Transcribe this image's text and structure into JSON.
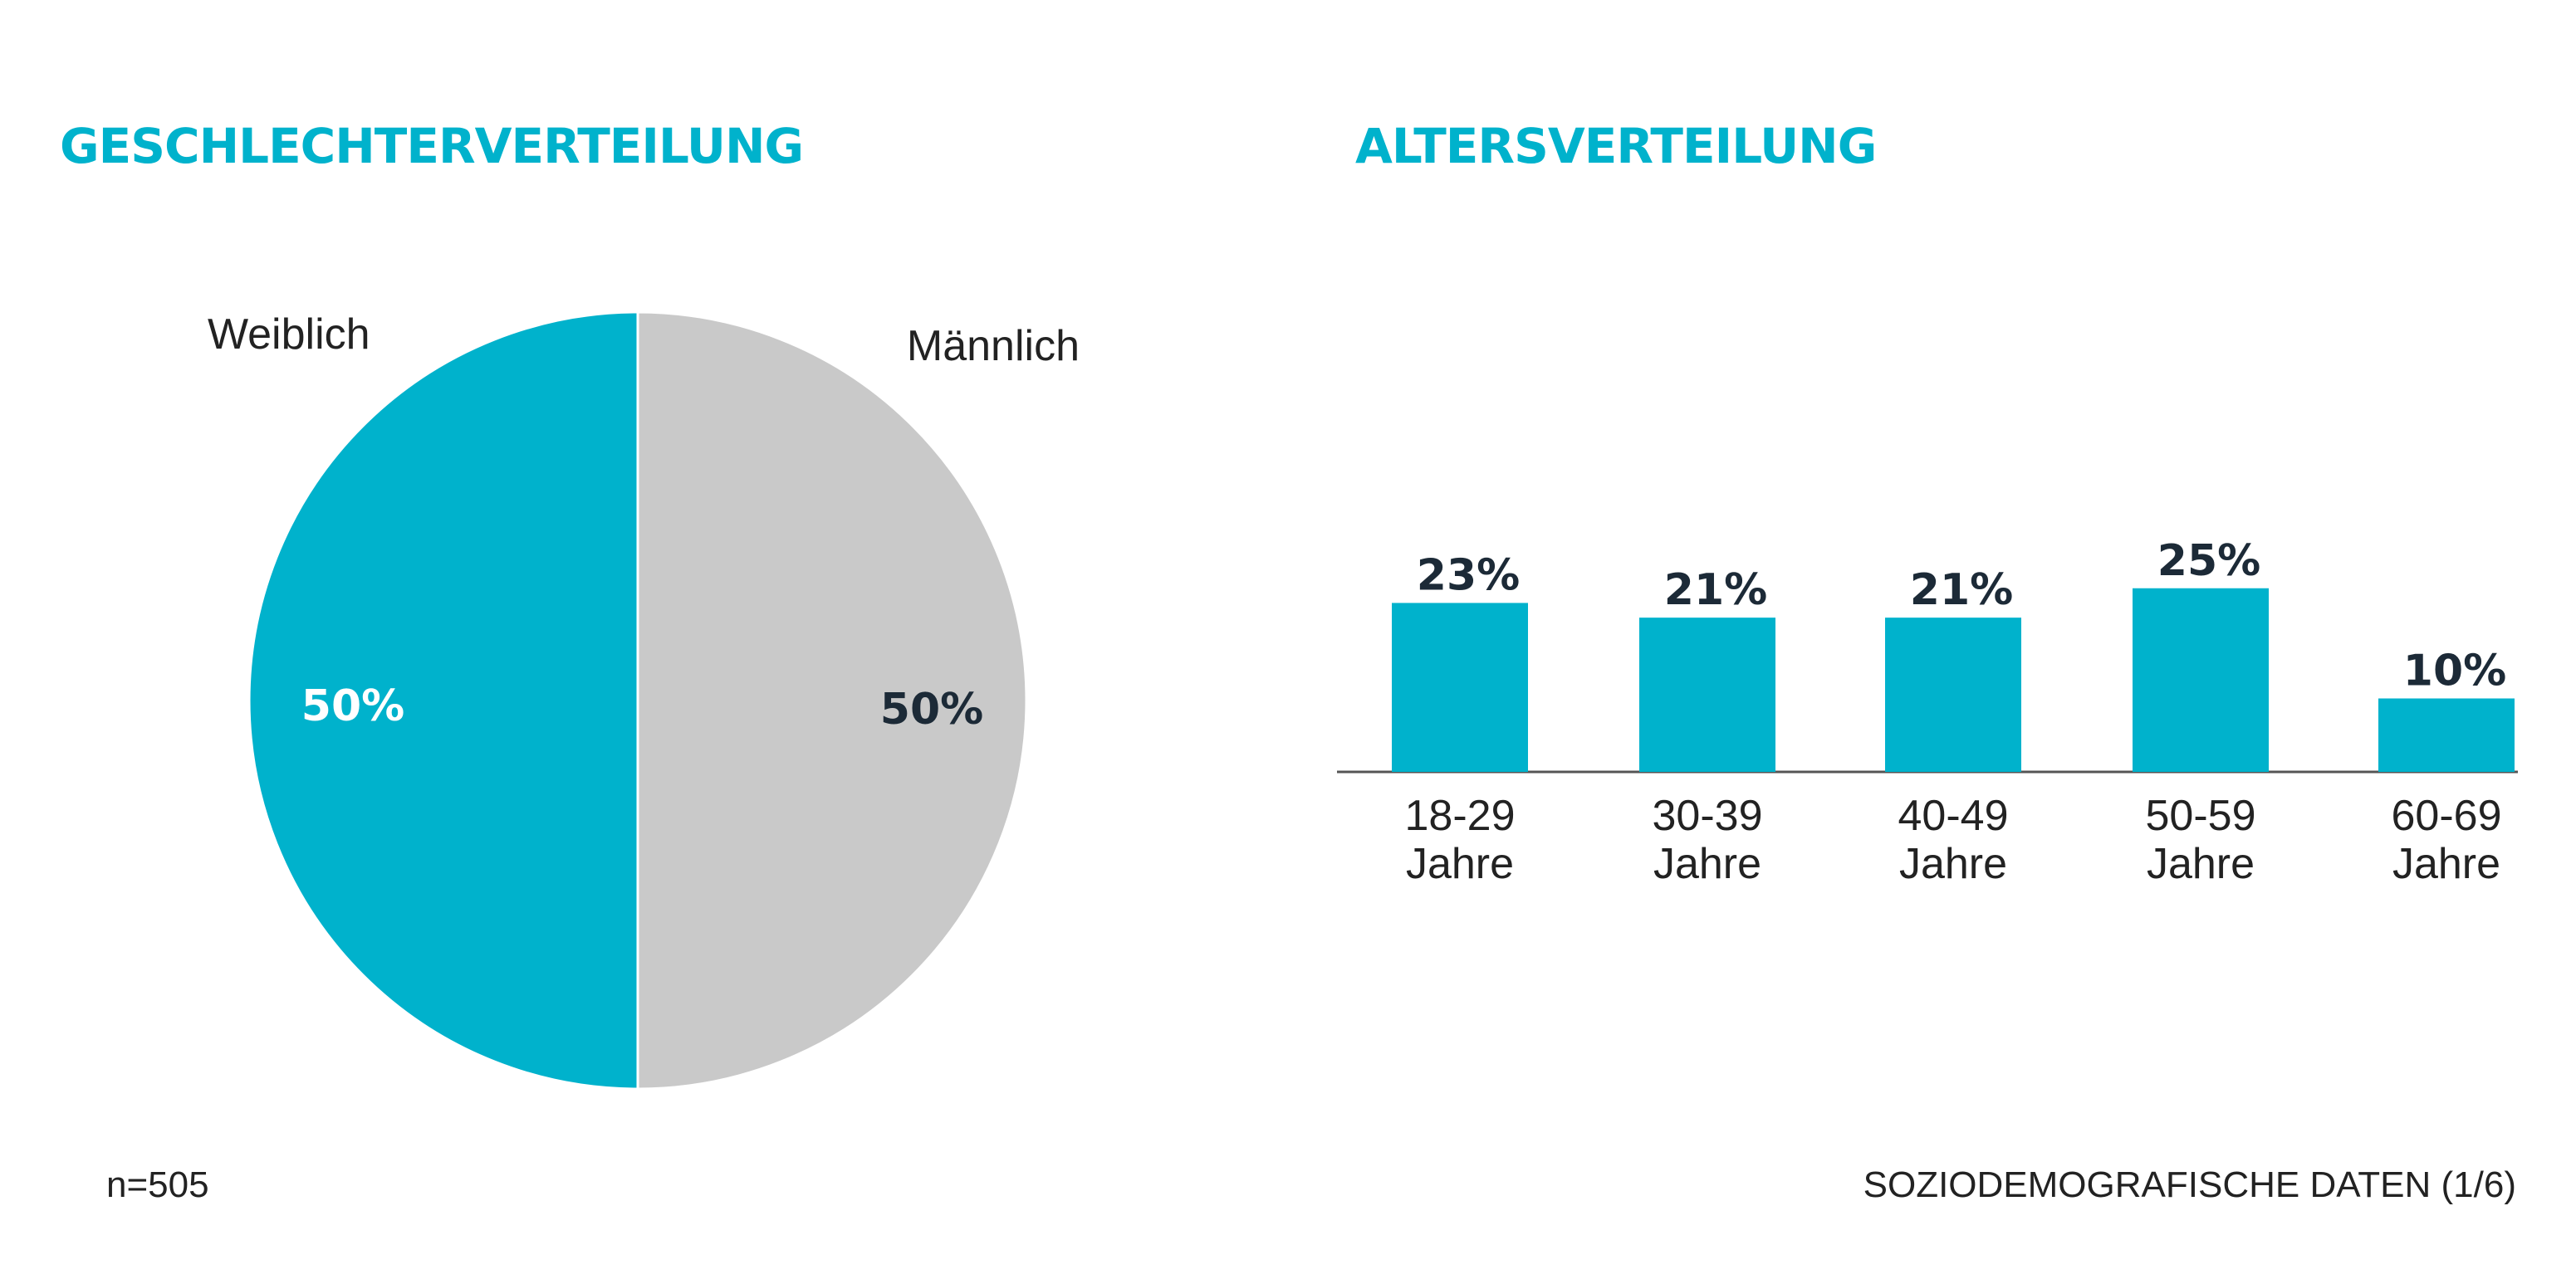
{
  "colors": {
    "accent": "#00b2cc",
    "grey": "#c9c9c9",
    "dark": "#1c2a37",
    "label": "#222222",
    "axis": "#555555"
  },
  "footer": {
    "sample": "n=505",
    "section": "SOZIODEMOGRAFISCHE DATEN (1/6)"
  },
  "chart_data": [
    {
      "type": "pie",
      "title": "GESCHLECHTERVERTEILUNG",
      "slices": [
        {
          "label": "Weiblich",
          "value": 50,
          "value_label": "50%",
          "color": "#00b2cc"
        },
        {
          "label": "Männlich",
          "value": 50,
          "value_label": "50%",
          "color": "#c9c9c9"
        }
      ]
    },
    {
      "type": "bar",
      "title": "ALTERSVERTEILUNG",
      "categories": [
        [
          "18-29",
          "Jahre"
        ],
        [
          "30-39",
          "Jahre"
        ],
        [
          "40-49",
          "Jahre"
        ],
        [
          "50-59",
          "Jahre"
        ],
        [
          "60-69",
          "Jahre"
        ]
      ],
      "values": [
        23,
        21,
        21,
        25,
        10
      ],
      "value_labels": [
        "23%",
        "21%",
        "21%",
        "25%",
        "10%"
      ],
      "ylim": [
        0,
        25
      ],
      "color": "#00b2cc"
    }
  ]
}
